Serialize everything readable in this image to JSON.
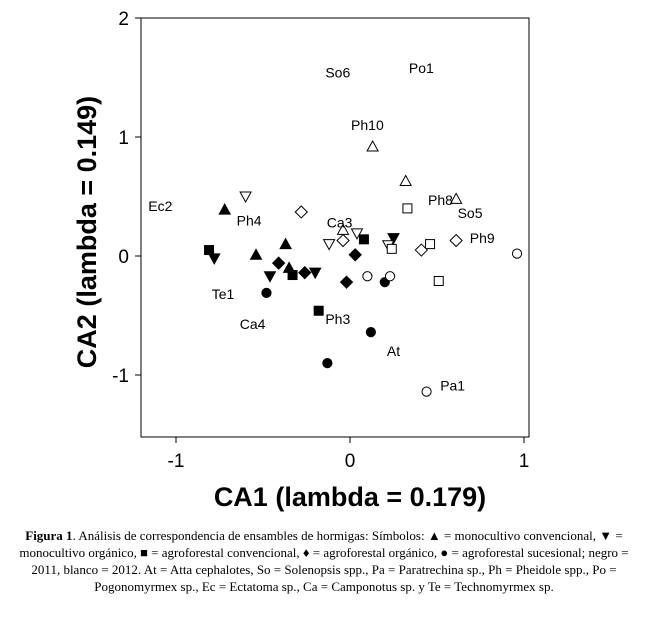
{
  "chart_data": {
    "type": "scatter",
    "title": "",
    "xlabel": "CA1 (lambda = 0.179)",
    "ylabel": "CA2 (lambda = 0.149)",
    "xlim": [
      -1.2,
      1.08
    ],
    "ylim": [
      -1.5,
      2.0
    ],
    "x_ticks": [
      "-1",
      "0",
      "1"
    ],
    "y_ticks": [
      "-1",
      "0",
      "1",
      "2"
    ],
    "grid": false,
    "legend": "in caption",
    "points": [
      {
        "x": -0.72,
        "y": 0.39,
        "shape": "triangle-up",
        "fill": "black"
      },
      {
        "x": -0.54,
        "y": 0.01,
        "shape": "triangle-up",
        "fill": "black"
      },
      {
        "x": -0.37,
        "y": 0.1,
        "shape": "triangle-up",
        "fill": "black"
      },
      {
        "x": -0.35,
        "y": -0.1,
        "shape": "triangle-up",
        "fill": "black"
      },
      {
        "x": -0.78,
        "y": -0.02,
        "shape": "triangle-down",
        "fill": "black"
      },
      {
        "x": -0.46,
        "y": -0.17,
        "shape": "triangle-down",
        "fill": "black"
      },
      {
        "x": -0.2,
        "y": -0.14,
        "shape": "triangle-down",
        "fill": "black"
      },
      {
        "x": 0.25,
        "y": 0.15,
        "shape": "triangle-down",
        "fill": "black"
      },
      {
        "x": -0.81,
        "y": 0.05,
        "shape": "square",
        "fill": "black"
      },
      {
        "x": -0.33,
        "y": -0.16,
        "shape": "square",
        "fill": "black"
      },
      {
        "x": -0.18,
        "y": -0.46,
        "shape": "square",
        "fill": "black"
      },
      {
        "x": 0.08,
        "y": 0.14,
        "shape": "square",
        "fill": "black"
      },
      {
        "x": -0.41,
        "y": -0.06,
        "shape": "diamond",
        "fill": "black"
      },
      {
        "x": -0.26,
        "y": -0.14,
        "shape": "diamond",
        "fill": "black"
      },
      {
        "x": -0.02,
        "y": -0.22,
        "shape": "diamond",
        "fill": "black"
      },
      {
        "x": 0.03,
        "y": 0.01,
        "shape": "diamond",
        "fill": "black"
      },
      {
        "x": -0.48,
        "y": -0.31,
        "shape": "circle",
        "fill": "black"
      },
      {
        "x": -0.13,
        "y": -0.9,
        "shape": "circle",
        "fill": "black"
      },
      {
        "x": 0.12,
        "y": -0.64,
        "shape": "circle",
        "fill": "black"
      },
      {
        "x": 0.2,
        "y": -0.22,
        "shape": "circle",
        "fill": "black"
      },
      {
        "x": 0.13,
        "y": 0.92,
        "shape": "triangle-up",
        "fill": "white"
      },
      {
        "x": 0.32,
        "y": 0.63,
        "shape": "triangle-up",
        "fill": "white"
      },
      {
        "x": 0.61,
        "y": 0.48,
        "shape": "triangle-up",
        "fill": "white"
      },
      {
        "x": -0.04,
        "y": 0.22,
        "shape": "triangle-up",
        "fill": "white"
      },
      {
        "x": -0.6,
        "y": 0.5,
        "shape": "triangle-down",
        "fill": "white"
      },
      {
        "x": -0.12,
        "y": 0.1,
        "shape": "triangle-down",
        "fill": "white"
      },
      {
        "x": 0.04,
        "y": 0.19,
        "shape": "triangle-down",
        "fill": "white"
      },
      {
        "x": 0.22,
        "y": 0.09,
        "shape": "triangle-down",
        "fill": "white"
      },
      {
        "x": 0.33,
        "y": 0.4,
        "shape": "square",
        "fill": "white"
      },
      {
        "x": 0.24,
        "y": 0.06,
        "shape": "square",
        "fill": "white"
      },
      {
        "x": 0.46,
        "y": 0.1,
        "shape": "square",
        "fill": "white"
      },
      {
        "x": 0.51,
        "y": -0.21,
        "shape": "square",
        "fill": "white"
      },
      {
        "x": -0.28,
        "y": 0.37,
        "shape": "diamond",
        "fill": "white"
      },
      {
        "x": -0.04,
        "y": 0.13,
        "shape": "diamond",
        "fill": "white"
      },
      {
        "x": 0.41,
        "y": 0.05,
        "shape": "diamond",
        "fill": "white"
      },
      {
        "x": 0.61,
        "y": 0.13,
        "shape": "diamond",
        "fill": "white"
      },
      {
        "x": 0.1,
        "y": -0.17,
        "shape": "circle",
        "fill": "white"
      },
      {
        "x": 0.23,
        "y": -0.17,
        "shape": "circle",
        "fill": "white"
      },
      {
        "x": 0.96,
        "y": 0.02,
        "shape": "circle",
        "fill": "white"
      },
      {
        "x": 0.44,
        "y": -1.14,
        "shape": "circle",
        "fill": "white"
      }
    ],
    "annotations": [
      {
        "text": "So6",
        "x": -0.07,
        "y": 1.54
      },
      {
        "text": "Po1",
        "x": 0.41,
        "y": 1.58
      },
      {
        "text": "Ph10",
        "x": 0.1,
        "y": 1.1
      },
      {
        "text": "Ec2",
        "x": -1.09,
        "y": 0.42
      },
      {
        "text": "Ph4",
        "x": -0.58,
        "y": 0.3
      },
      {
        "text": "Ph8",
        "x": 0.52,
        "y": 0.47
      },
      {
        "text": "So5",
        "x": 0.69,
        "y": 0.36
      },
      {
        "text": "Ca3",
        "x": -0.06,
        "y": 0.28
      },
      {
        "text": "Ph9",
        "x": 0.76,
        "y": 0.15
      },
      {
        "text": "Te1",
        "x": -0.73,
        "y": -0.32
      },
      {
        "text": "Ph3",
        "x": -0.07,
        "y": -0.53
      },
      {
        "text": "Ca4",
        "x": -0.56,
        "y": -0.57
      },
      {
        "text": "At",
        "x": 0.25,
        "y": -0.8
      },
      {
        "text": "Pa1",
        "x": 0.59,
        "y": -1.09
      }
    ]
  },
  "caption": {
    "label": "Figura 1",
    "text": ". Análisis de correspondencia de ensambles de hormigas: Símbolos: ▲ = monocultivo convencional, ▼ = monocultivo orgánico, ■ = agroforestal convencional, ♦ = agroforestal orgánico, ● = agroforestal sucesional; negro = 2011, blanco = 2012. At = Atta cephalotes, So = Solenopsis spp., Pa = Paratrechina sp., Ph = Pheidole spp., Po = Pogonomyrmex sp., Ec = Ectatoma sp., Ca = Camponotus sp. y Te = Technomyrmex sp."
  }
}
